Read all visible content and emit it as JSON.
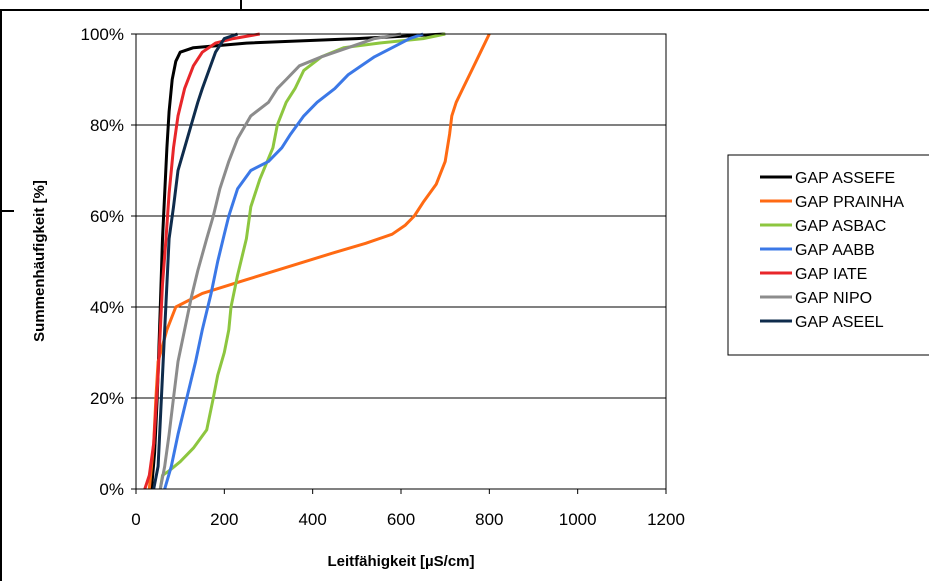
{
  "chart_data": {
    "type": "line",
    "xlabel": "Leitfähigkeit [µS/cm]",
    "ylabel": "Summenhäufigkeit [%]",
    "xlim": [
      0,
      1200
    ],
    "ylim": [
      0,
      100
    ],
    "x_ticks": [
      "0",
      "200",
      "400",
      "600",
      "800",
      "1000",
      "1200"
    ],
    "y_ticks": [
      "0%",
      "20%",
      "40%",
      "60%",
      "80%",
      "100%"
    ],
    "grid": "horizontal major gridlines",
    "legend_position": "right",
    "series": [
      {
        "name": "GAP ASSEFE",
        "color": "#000000",
        "points": [
          [
            35,
            0
          ],
          [
            42,
            8
          ],
          [
            48,
            20
          ],
          [
            55,
            40
          ],
          [
            60,
            55
          ],
          [
            65,
            65
          ],
          [
            70,
            75
          ],
          [
            75,
            83
          ],
          [
            82,
            90
          ],
          [
            90,
            94
          ],
          [
            100,
            96
          ],
          [
            130,
            97
          ],
          [
            250,
            98
          ],
          [
            500,
            99
          ],
          [
            700,
            100
          ]
        ]
      },
      {
        "name": "GAP PRAINHA",
        "color": "#FF6A13",
        "points": [
          [
            30,
            0
          ],
          [
            40,
            10
          ],
          [
            45,
            20
          ],
          [
            50,
            28
          ],
          [
            70,
            35
          ],
          [
            90,
            40
          ],
          [
            150,
            43
          ],
          [
            250,
            46
          ],
          [
            350,
            49
          ],
          [
            450,
            52
          ],
          [
            520,
            54
          ],
          [
            580,
            56
          ],
          [
            610,
            58
          ],
          [
            630,
            60
          ],
          [
            650,
            63
          ],
          [
            680,
            67
          ],
          [
            700,
            72
          ],
          [
            710,
            78
          ],
          [
            715,
            82
          ],
          [
            725,
            85
          ],
          [
            740,
            88
          ],
          [
            760,
            92
          ],
          [
            780,
            96
          ],
          [
            800,
            100
          ]
        ]
      },
      {
        "name": "GAP ASBAC",
        "color": "#8DC63F",
        "points": [
          [
            55,
            0
          ],
          [
            60,
            3
          ],
          [
            75,
            4
          ],
          [
            100,
            6
          ],
          [
            130,
            9
          ],
          [
            160,
            13
          ],
          [
            175,
            20
          ],
          [
            185,
            25
          ],
          [
            200,
            30
          ],
          [
            210,
            35
          ],
          [
            215,
            40
          ],
          [
            230,
            47
          ],
          [
            250,
            55
          ],
          [
            260,
            62
          ],
          [
            280,
            68
          ],
          [
            310,
            75
          ],
          [
            320,
            80
          ],
          [
            340,
            85
          ],
          [
            360,
            88
          ],
          [
            380,
            92
          ],
          [
            420,
            95
          ],
          [
            470,
            97
          ],
          [
            550,
            98
          ],
          [
            650,
            99
          ],
          [
            700,
            100
          ]
        ]
      },
      {
        "name": "GAP AABB",
        "color": "#3B78E7",
        "points": [
          [
            65,
            0
          ],
          [
            80,
            5
          ],
          [
            95,
            12
          ],
          [
            115,
            20
          ],
          [
            135,
            28
          ],
          [
            150,
            35
          ],
          [
            170,
            43
          ],
          [
            185,
            50
          ],
          [
            200,
            56
          ],
          [
            210,
            60
          ],
          [
            230,
            66
          ],
          [
            260,
            70
          ],
          [
            300,
            72
          ],
          [
            330,
            75
          ],
          [
            350,
            78
          ],
          [
            380,
            82
          ],
          [
            410,
            85
          ],
          [
            450,
            88
          ],
          [
            480,
            91
          ],
          [
            510,
            93
          ],
          [
            540,
            95
          ],
          [
            580,
            97
          ],
          [
            620,
            99
          ],
          [
            650,
            100
          ]
        ]
      },
      {
        "name": "GAP IATE",
        "color": "#E8262A",
        "points": [
          [
            20,
            0
          ],
          [
            30,
            3
          ],
          [
            40,
            10
          ],
          [
            50,
            25
          ],
          [
            55,
            35
          ],
          [
            60,
            45
          ],
          [
            68,
            55
          ],
          [
            75,
            65
          ],
          [
            85,
            75
          ],
          [
            95,
            82
          ],
          [
            110,
            88
          ],
          [
            130,
            93
          ],
          [
            150,
            96
          ],
          [
            180,
            98
          ],
          [
            220,
            99
          ],
          [
            280,
            100
          ]
        ]
      },
      {
        "name": "GAP NIPO",
        "color": "#8C8C8C",
        "points": [
          [
            55,
            0
          ],
          [
            65,
            5
          ],
          [
            75,
            12
          ],
          [
            85,
            20
          ],
          [
            95,
            28
          ],
          [
            110,
            35
          ],
          [
            125,
            42
          ],
          [
            140,
            48
          ],
          [
            160,
            55
          ],
          [
            175,
            60
          ],
          [
            190,
            66
          ],
          [
            210,
            72
          ],
          [
            230,
            77
          ],
          [
            260,
            82
          ],
          [
            300,
            85
          ],
          [
            320,
            88
          ],
          [
            340,
            90
          ],
          [
            370,
            93
          ],
          [
            420,
            95
          ],
          [
            480,
            97
          ],
          [
            540,
            99
          ],
          [
            600,
            100
          ]
        ]
      },
      {
        "name": "GAP ASEEL",
        "color": "#0F2C4C",
        "points": [
          [
            40,
            0
          ],
          [
            50,
            5
          ],
          [
            55,
            15
          ],
          [
            60,
            25
          ],
          [
            65,
            35
          ],
          [
            70,
            45
          ],
          [
            75,
            55
          ],
          [
            85,
            62
          ],
          [
            95,
            70
          ],
          [
            110,
            75
          ],
          [
            125,
            80
          ],
          [
            140,
            85
          ],
          [
            150,
            88
          ],
          [
            165,
            92
          ],
          [
            180,
            96
          ],
          [
            200,
            99
          ],
          [
            230,
            100
          ]
        ]
      }
    ]
  }
}
